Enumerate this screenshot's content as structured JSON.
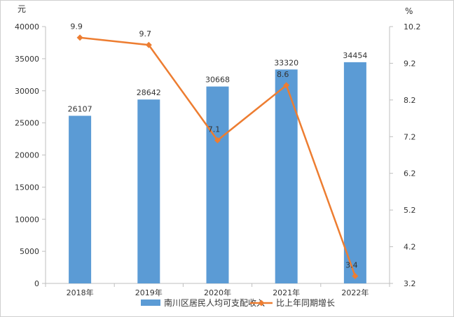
{
  "chart_data": {
    "type": "bar",
    "categories": [
      "2018年",
      "2019年",
      "2020年",
      "2021年",
      "2022年"
    ],
    "series": [
      {
        "name": "南川区居民人均可支配收入",
        "type": "bar",
        "axis": "left",
        "color": "#5B9BD5",
        "values": [
          26107,
          28642,
          30668,
          33320,
          34454
        ]
      },
      {
        "name": "比上年同期增长",
        "type": "line",
        "axis": "right",
        "color": "#ED7D31",
        "values": [
          9.9,
          9.7,
          7.1,
          8.6,
          3.4
        ]
      }
    ],
    "y_left": {
      "unit": "元",
      "min": 0,
      "max": 40000,
      "ticks": [
        0,
        5000,
        10000,
        15000,
        20000,
        25000,
        30000,
        35000,
        40000
      ]
    },
    "y_right": {
      "unit": "%",
      "min": 3.2,
      "max": 10.2,
      "ticks": [
        "3.2",
        "4.2",
        "5.2",
        "6.2",
        "7.2",
        "8.2",
        "9.2",
        "10.2"
      ]
    },
    "legend": "bottom",
    "grid": false
  }
}
